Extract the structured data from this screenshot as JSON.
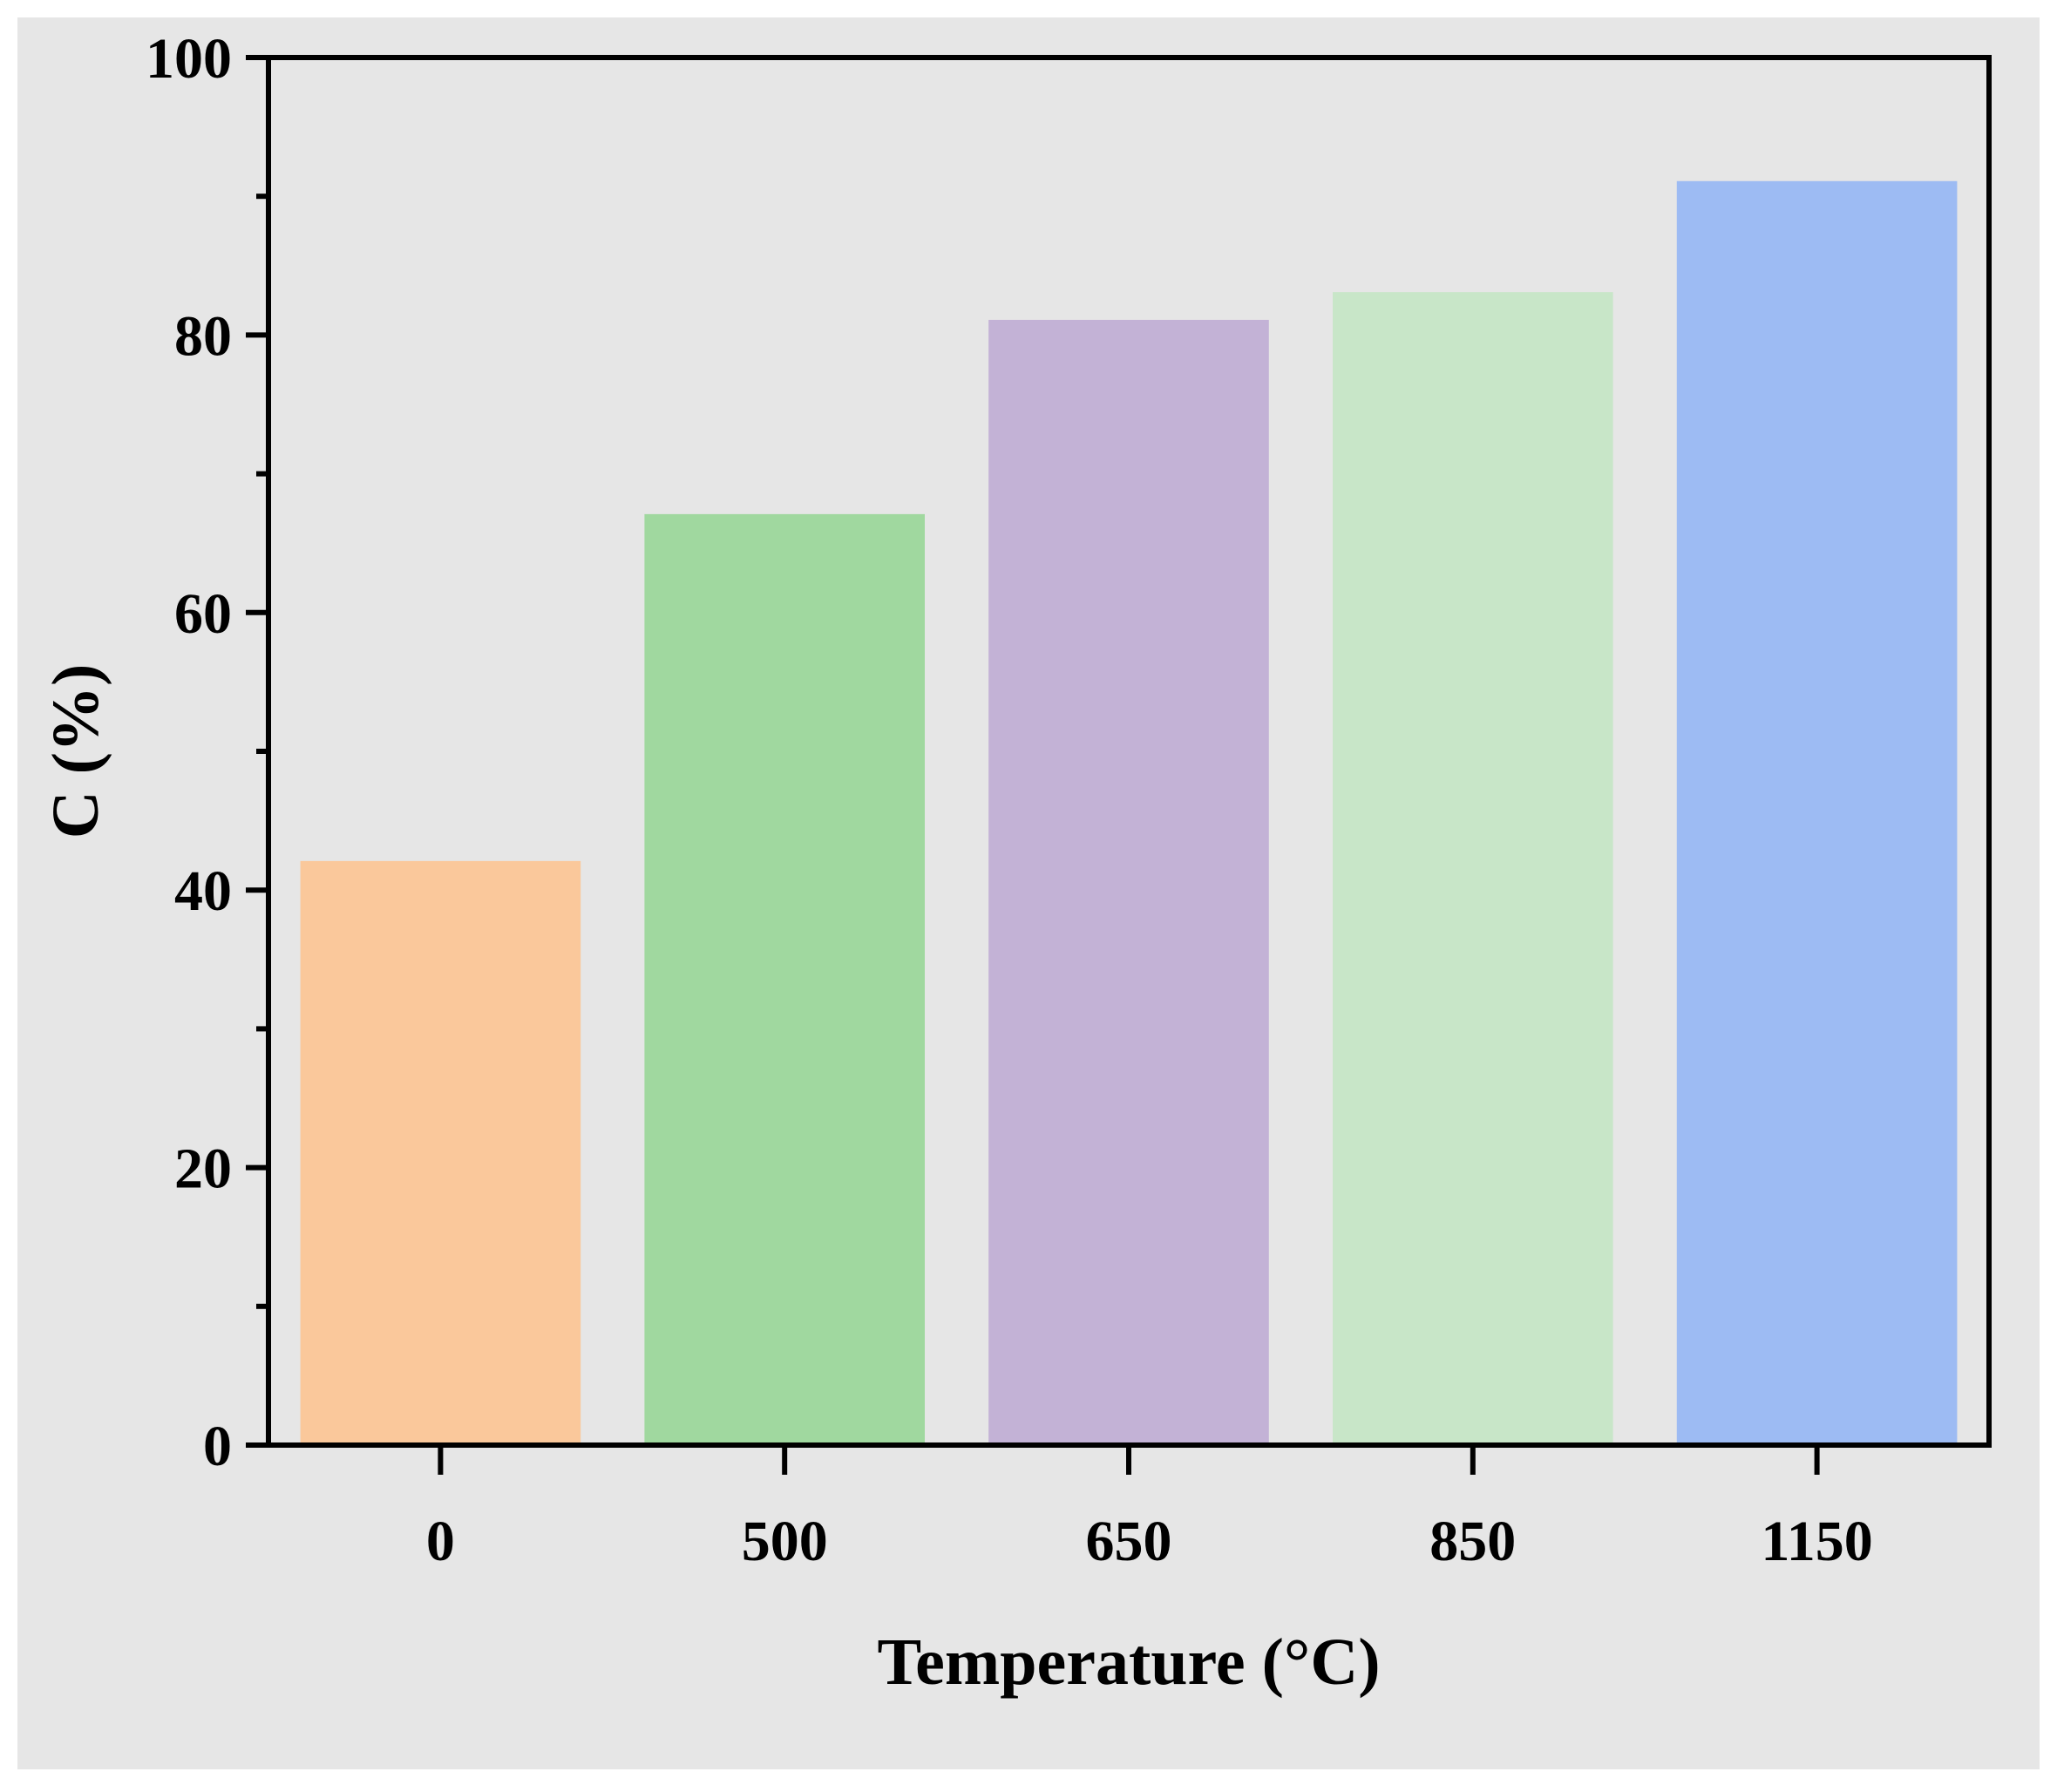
{
  "chart_data": {
    "type": "bar",
    "title": "",
    "xlabel": "Temperature (°C)",
    "ylabel": "C (%)",
    "categories": [
      "0",
      "500",
      "650",
      "850",
      "1150"
    ],
    "values": [
      42,
      67,
      81,
      83,
      91
    ],
    "ylim": [
      0,
      100
    ],
    "y_major_ticks": [
      0,
      20,
      40,
      60,
      80,
      100
    ],
    "y_tick_labels": [
      "0",
      "20",
      "40",
      "60",
      "80",
      "100"
    ],
    "y_minor_ticks": [
      10,
      30,
      50,
      70,
      90
    ],
    "bar_colors": [
      "#fac89b",
      "#a0d89f",
      "#c3b2d6",
      "#c8e6c8",
      "#9dbbf3"
    ],
    "grid": false,
    "legend": "none"
  },
  "colors": {
    "background": "#e6e6e6",
    "axis": "#000000"
  }
}
